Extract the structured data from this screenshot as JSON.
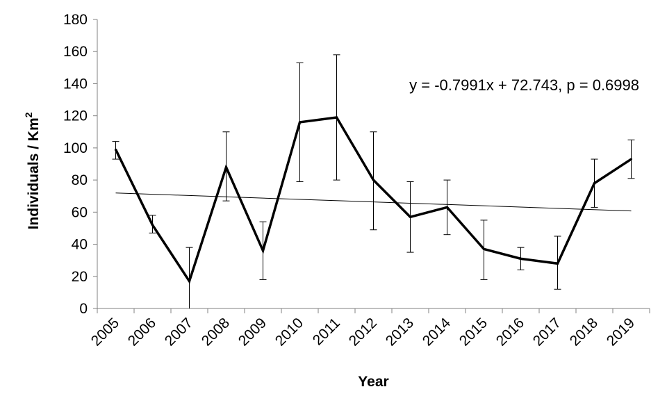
{
  "chart_data": {
    "type": "line",
    "title": "",
    "xlabel": "Year",
    "ylabel": "Individuals / Km",
    "ylabel_superscript": "2",
    "ylim": [
      0,
      180
    ],
    "yticks": [
      0,
      20,
      40,
      60,
      80,
      100,
      120,
      140,
      160,
      180
    ],
    "categories": [
      "2005",
      "2006",
      "2007",
      "2008",
      "2009",
      "2010",
      "2011",
      "2012",
      "2013",
      "2014",
      "2015",
      "2016",
      "2017",
      "2018",
      "2019"
    ],
    "series": [
      {
        "values": [
          99,
          52,
          17,
          88,
          36,
          116,
          119,
          80,
          57,
          63,
          37,
          31,
          28,
          78,
          93
        ],
        "error_upper": [
          104,
          58,
          38,
          110,
          54,
          153,
          158,
          110,
          79,
          80,
          55,
          38,
          45,
          93,
          105
        ],
        "error_lower": [
          93,
          47,
          0,
          67,
          18,
          79,
          80,
          49,
          35,
          46,
          18,
          24,
          12,
          63,
          81
        ],
        "color": "#000000"
      }
    ],
    "trendline": {
      "slope": -0.7991,
      "intercept": 72.743,
      "color": "#000000"
    },
    "annotation": "y = -0.7991x + 72.743, p = 0.6998",
    "grid": false,
    "legend": "none"
  }
}
